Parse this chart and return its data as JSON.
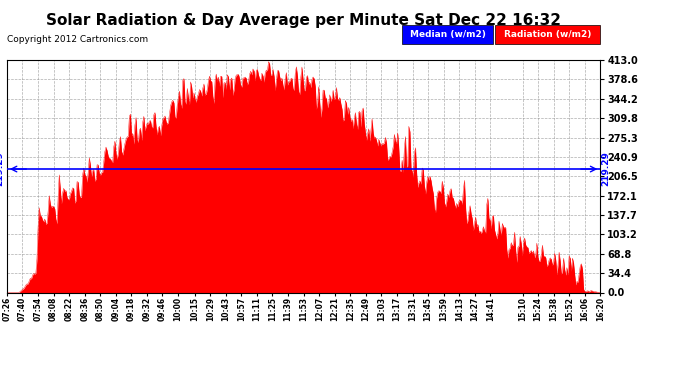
{
  "title": "Solar Radiation & Day Average per Minute Sat Dec 22 16:32",
  "copyright": "Copyright 2012 Cartronics.com",
  "median_value": 219.29,
  "y_max": 413.0,
  "y_min": 0.0,
  "yticks": [
    0.0,
    34.4,
    68.8,
    103.2,
    137.7,
    172.1,
    206.5,
    240.9,
    275.3,
    309.8,
    344.2,
    378.6,
    413.0
  ],
  "ytick_labels": [
    "0.0",
    "34.4",
    "68.8",
    "103.2",
    "137.7",
    "172.1",
    "206.5",
    "240.9",
    "275.3",
    "309.8",
    "344.2",
    "378.6",
    "413.0"
  ],
  "fill_color": "#FF0000",
  "median_line_color": "#0000FF",
  "background_color": "#FFFFFF",
  "grid_color": "#999999",
  "title_fontsize": 11,
  "legend_median_bg": "#0000FF",
  "legend_radiation_bg": "#FF0000",
  "x_labels": [
    "07:26",
    "07:40",
    "07:54",
    "08:08",
    "08:22",
    "08:36",
    "08:50",
    "09:04",
    "09:18",
    "09:32",
    "09:46",
    "10:00",
    "10:15",
    "10:29",
    "10:43",
    "10:57",
    "11:11",
    "11:25",
    "11:39",
    "11:53",
    "12:07",
    "12:21",
    "12:35",
    "12:49",
    "13:03",
    "13:17",
    "13:31",
    "13:45",
    "13:59",
    "14:13",
    "14:27",
    "14:41",
    "15:10",
    "15:24",
    "15:38",
    "15:52",
    "16:06",
    "16:20"
  ],
  "peak_t": 0.42,
  "sigma": 0.25,
  "peak_scale": 380,
  "noise_std": 18,
  "random_seed": 7
}
